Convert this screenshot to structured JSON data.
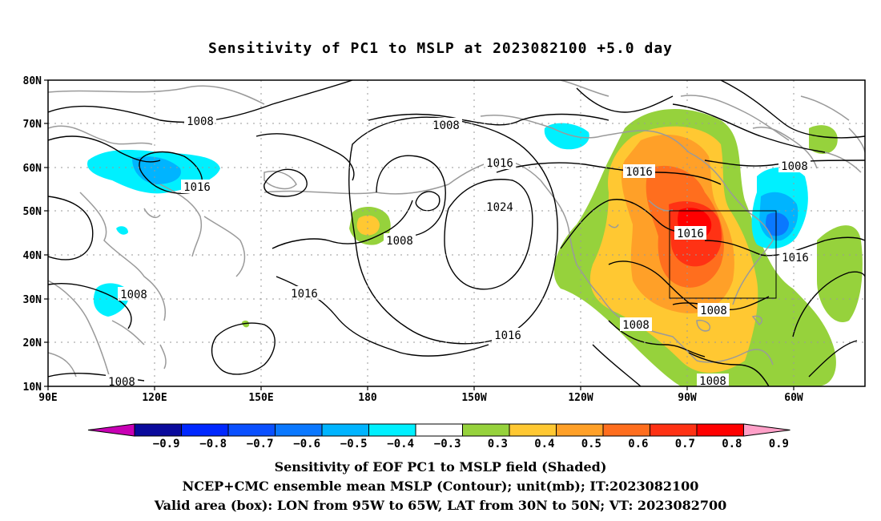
{
  "title": "Sensitivity of PC1 to MSLP at 2023082100 +5.0 day",
  "map": {
    "lat_labels": [
      "80N",
      "70N",
      "60N",
      "50N",
      "40N",
      "30N",
      "20N",
      "10N"
    ],
    "lon_labels": [
      "90E",
      "120E",
      "150E",
      "180",
      "150W",
      "120W",
      "90W",
      "60W"
    ],
    "contour_labels": [
      {
        "text": "1008"
      },
      {
        "text": "1016"
      },
      {
        "text": "1008"
      },
      {
        "text": "1008"
      },
      {
        "text": "1008"
      },
      {
        "text": "1016"
      },
      {
        "text": "1008"
      },
      {
        "text": "1016"
      },
      {
        "text": "1024"
      },
      {
        "text": "1016"
      },
      {
        "text": "1016"
      },
      {
        "text": "1008"
      },
      {
        "text": "1016"
      },
      {
        "text": "1016"
      },
      {
        "text": "1008"
      },
      {
        "text": "1008"
      },
      {
        "text": "1008"
      }
    ]
  },
  "colorbar": {
    "labels": [
      "-0.9",
      "-0.8",
      "-0.7",
      "-0.6",
      "-0.5",
      "-0.4",
      "-0.3",
      "0.3",
      "0.4",
      "0.5",
      "0.6",
      "0.7",
      "0.8",
      "0.9"
    ],
    "colors": [
      "#0a0a9c",
      "#0028ff",
      "#0a50ff",
      "#0a78ff",
      "#00b4ff",
      "#00f0ff",
      "#ffffff",
      "#96d23c",
      "#ffc832",
      "#ffa028",
      "#ff6e1e",
      "#ff3214",
      "#ff0000"
    ],
    "under_color": "#c800b4",
    "over_color": "#ffa0c8"
  },
  "captions": [
    "Sensitivity of EOF PC1 to MSLP field (Shaded)",
    "NCEP+CMC ensemble mean MSLP (Contour); unit(mb); IT:2023082100",
    "Valid area (box): LON from 95W to 65W, LAT from 30N to 50N; VT: 2023082700"
  ]
}
